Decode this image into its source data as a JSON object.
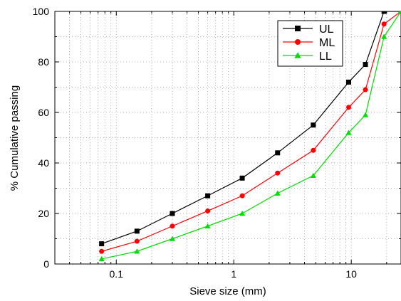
{
  "chart_data": {
    "type": "line",
    "title": "",
    "xlabel": "Sieve size (mm)",
    "ylabel": "% Cumulative passing",
    "xscale": "log",
    "xlim": [
      0.03,
      26.5
    ],
    "ylim": [
      0,
      100
    ],
    "x_ticks": [
      {
        "value": 0.1,
        "label": "0.1"
      },
      {
        "value": 1,
        "label": "1"
      },
      {
        "value": 10,
        "label": "10"
      }
    ],
    "y_ticks": [
      {
        "value": 0,
        "label": "0"
      },
      {
        "value": 20,
        "label": "20"
      },
      {
        "value": 40,
        "label": "40"
      },
      {
        "value": 60,
        "label": "60"
      },
      {
        "value": 80,
        "label": "80"
      },
      {
        "value": 100,
        "label": "100"
      }
    ],
    "grid": true,
    "legend_position": "top-right",
    "x": [
      0.075,
      0.15,
      0.3,
      0.6,
      1.18,
      2.36,
      4.75,
      9.5,
      13.2,
      19,
      26.5
    ],
    "series": [
      {
        "name": "UL",
        "color": "#000000",
        "marker": "square",
        "values": [
          8,
          13,
          20,
          27,
          34,
          44,
          55,
          72,
          79,
          100,
          100
        ]
      },
      {
        "name": "ML",
        "color": "#ff0000",
        "marker": "circle",
        "values": [
          5,
          9,
          15,
          21,
          27,
          36,
          45,
          62,
          69,
          95,
          100
        ]
      },
      {
        "name": "LL",
        "color": "#00dd00",
        "marker": "triangle",
        "values": [
          2,
          5,
          10,
          15,
          20,
          28,
          35,
          52,
          59,
          90,
          100
        ]
      }
    ]
  }
}
